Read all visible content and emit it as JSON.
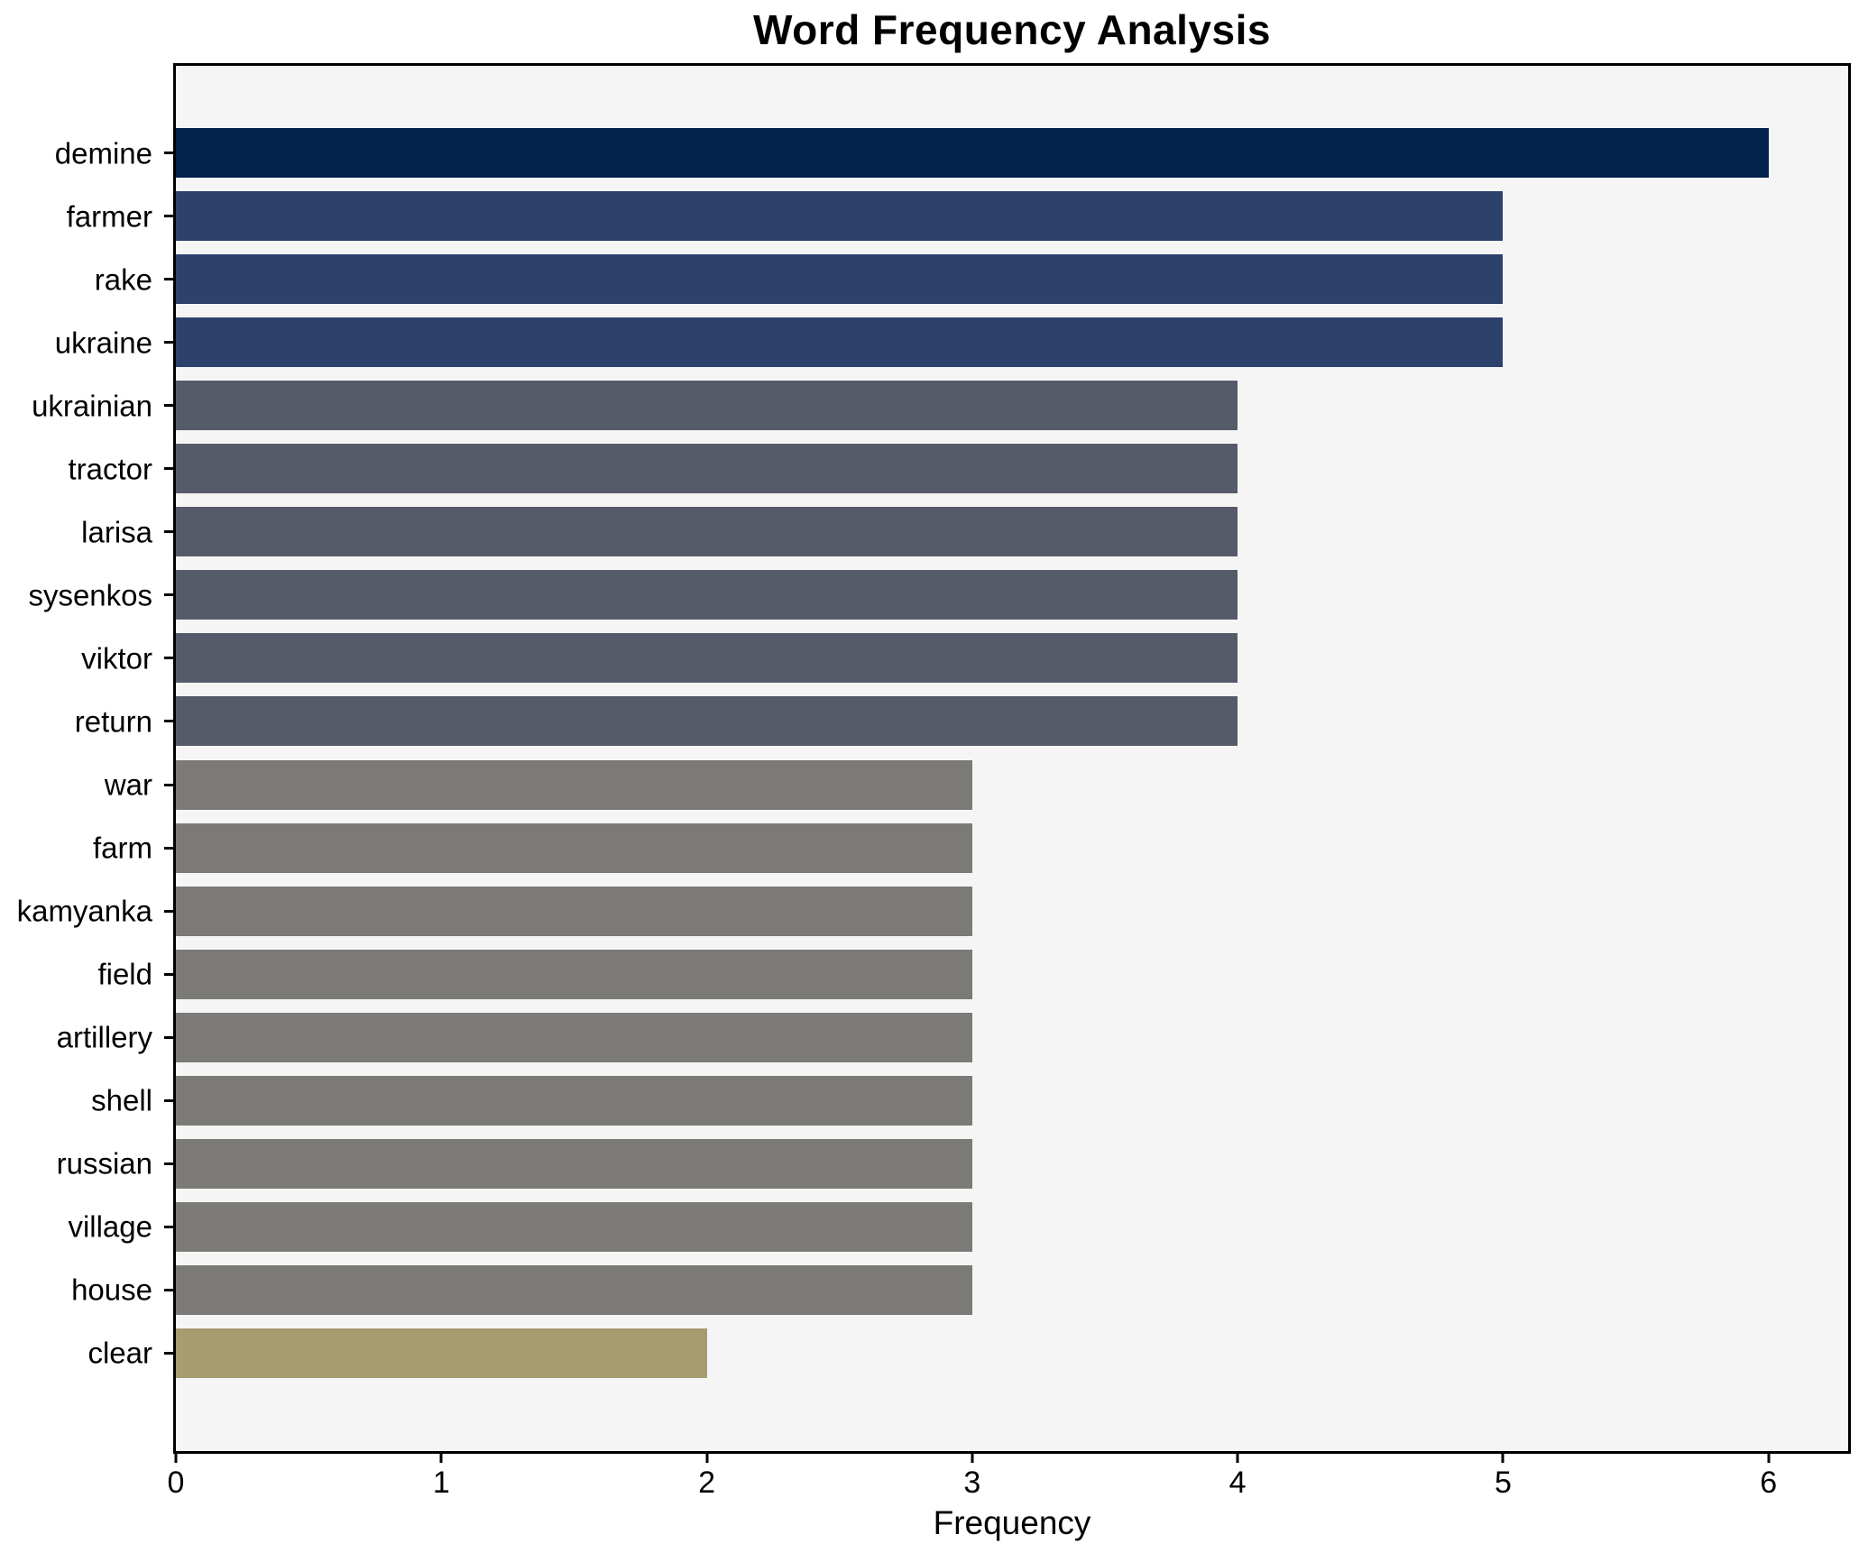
{
  "figure": {
    "background": "#ffffff"
  },
  "chart_data": {
    "type": "bar",
    "orientation": "horizontal",
    "title": "Word Frequency Analysis",
    "xlabel": "Frequency",
    "ylabel": "",
    "xlim": [
      0,
      6.3
    ],
    "xticks": [
      0,
      1,
      2,
      3,
      4,
      5,
      6
    ],
    "grid": false,
    "legend": null,
    "plot_background": "#f5f5f6",
    "spine_color": "#000000",
    "categories": [
      "demine",
      "farmer",
      "rake",
      "ukraine",
      "ukrainian",
      "tractor",
      "larisa",
      "sysenkos",
      "viktor",
      "return",
      "war",
      "farm",
      "kamyanka",
      "field",
      "artillery",
      "shell",
      "russian",
      "village",
      "house",
      "clear"
    ],
    "values": [
      6,
      5,
      5,
      5,
      4,
      4,
      4,
      4,
      4,
      4,
      3,
      3,
      3,
      3,
      3,
      3,
      3,
      3,
      3,
      2
    ],
    "bar_colors": [
      "#04224e",
      "#2d416d",
      "#2d416d",
      "#2d416d",
      "#565b69",
      "#565b69",
      "#565b69",
      "#565b69",
      "#565b69",
      "#565b69",
      "#7b7a76",
      "#7b7a76",
      "#7b7a76",
      "#7b7a76",
      "#7b7a76",
      "#7b7a76",
      "#7b7a76",
      "#7b7a76",
      "#7b7a76",
      "#a69c70"
    ]
  }
}
